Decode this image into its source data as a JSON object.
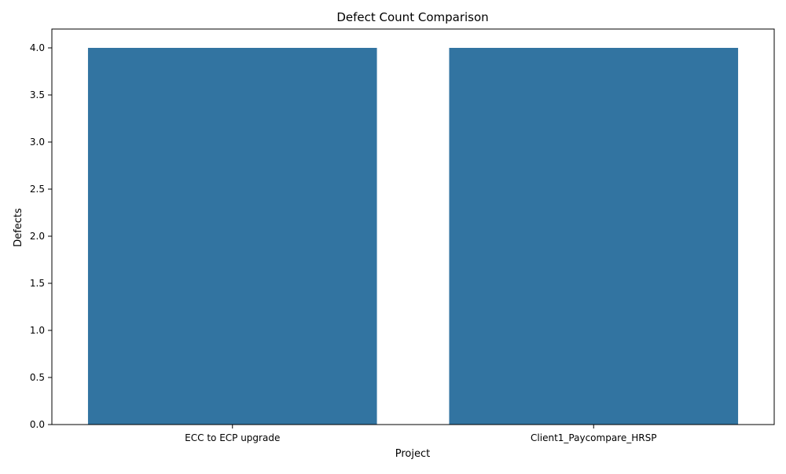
{
  "chart_data": {
    "type": "bar",
    "title": "Defect Count Comparison",
    "xlabel": "Project",
    "ylabel": "Defects",
    "categories": [
      "ECC to ECP upgrade",
      "Client1_Paycompare_HRSP"
    ],
    "values": [
      4,
      4
    ],
    "ylim": [
      0,
      4.2
    ],
    "yticks": [
      "0.0",
      "0.5",
      "1.0",
      "1.5",
      "2.0",
      "2.5",
      "3.0",
      "3.5",
      "4.0"
    ],
    "bar_color": "#3274a1",
    "grid": false,
    "legend": "none"
  }
}
